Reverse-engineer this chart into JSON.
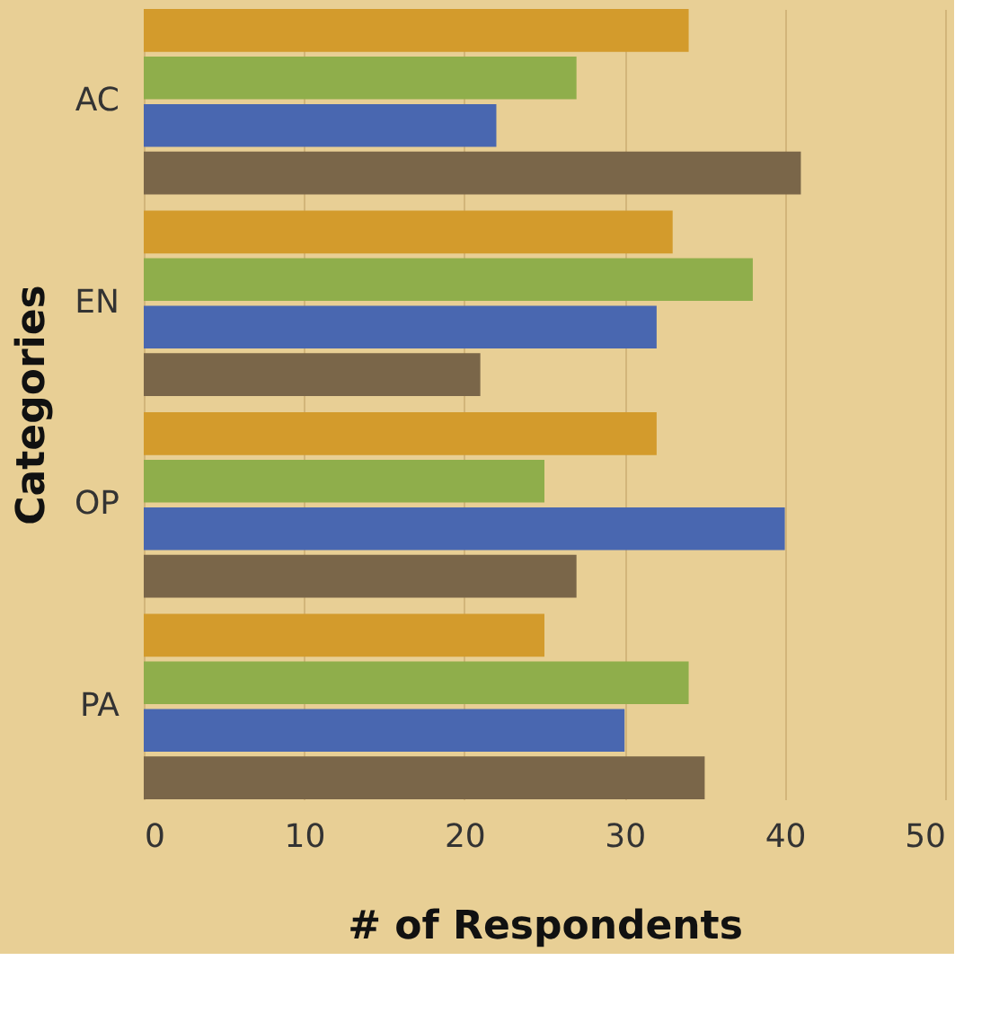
{
  "chart_data": {
    "type": "bar",
    "orientation": "horizontal",
    "xlabel": "# of Respondents",
    "ylabel": "Categories",
    "categories": [
      "AC",
      "EN",
      "OP",
      "PA"
    ],
    "series": [
      {
        "color": "#d39b2c",
        "values": [
          34,
          33,
          32,
          25
        ]
      },
      {
        "color": "#8fae4b",
        "values": [
          27,
          38,
          25,
          34
        ]
      },
      {
        "color": "#4967b0",
        "values": [
          22,
          32,
          40,
          30
        ]
      },
      {
        "color": "#7a6649",
        "values": [
          41,
          21,
          27,
          35
        ]
      }
    ],
    "xlim": [
      0,
      50
    ],
    "xticks": [
      0,
      10,
      20,
      30,
      40,
      50
    ],
    "grid": "x",
    "legend": false
  }
}
